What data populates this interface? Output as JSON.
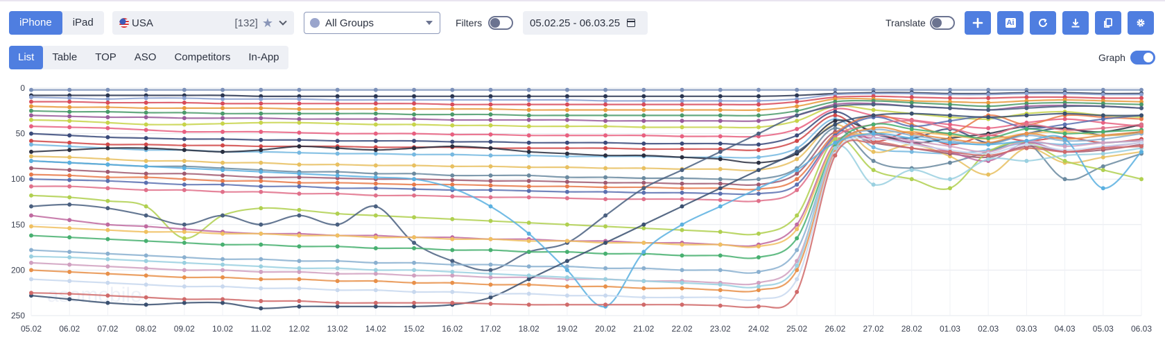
{
  "device_tabs": [
    {
      "label": "iPhone",
      "active": true
    },
    {
      "label": "iPad",
      "active": false
    }
  ],
  "country": {
    "name": "USA",
    "count": "[132]"
  },
  "group_select": {
    "value": "All Groups"
  },
  "filters": {
    "label": "Filters",
    "on": false
  },
  "date_range": "05.02.25 - 06.03.25",
  "translate": {
    "label": "Translate",
    "on": false
  },
  "toolbar": [
    {
      "name": "add-button",
      "icon": "plus-icon"
    },
    {
      "name": "ai-button",
      "icon": "ai-icon",
      "label": "Ai"
    },
    {
      "name": "refresh-button",
      "icon": "refresh-icon"
    },
    {
      "name": "download-button",
      "icon": "download-icon"
    },
    {
      "name": "copy-button",
      "icon": "copy-icon"
    },
    {
      "name": "settings-button",
      "icon": "gear-icon"
    }
  ],
  "view_tabs": [
    {
      "label": "List",
      "active": true
    },
    {
      "label": "Table",
      "active": false
    },
    {
      "label": "TOP",
      "active": false
    },
    {
      "label": "ASO",
      "active": false
    },
    {
      "label": "Competitors",
      "active": false
    },
    {
      "label": "In-App",
      "active": false
    }
  ],
  "graph_toggle": {
    "label": "Graph",
    "on": true
  },
  "watermark": "asomobile",
  "chart_data": {
    "type": "line",
    "y_inverted": true,
    "ylim": [
      0,
      250
    ],
    "y_ticks": [
      0,
      50,
      100,
      150,
      200,
      250
    ],
    "grid": true,
    "x": [
      "05.02",
      "06.02",
      "07.02",
      "08.02",
      "09.02",
      "10.02",
      "11.02",
      "12.02",
      "13.02",
      "14.02",
      "15.02",
      "16.02",
      "17.02",
      "18.02",
      "19.02",
      "20.02",
      "21.02",
      "22.02",
      "23.02",
      "24.02",
      "25.02",
      "26.02",
      "27.02",
      "28.02",
      "01.03",
      "02.03",
      "03.03",
      "04.03",
      "05.03",
      "06.03"
    ],
    "series": [
      {
        "color": "#7a8fb8",
        "values": [
          2,
          2,
          2,
          2,
          2,
          2,
          2,
          2,
          2,
          2,
          2,
          2,
          2,
          2,
          2,
          2,
          2,
          2,
          2,
          2,
          2,
          2,
          2,
          2,
          2,
          2,
          2,
          2,
          2,
          2
        ]
      },
      {
        "color": "#2a3550",
        "values": [
          8,
          8,
          8,
          8,
          8,
          8,
          9,
          9,
          9,
          9,
          9,
          9,
          9,
          9,
          9,
          9,
          9,
          9,
          9,
          9,
          8,
          6,
          5,
          5,
          6,
          6,
          5,
          5,
          6,
          6
        ]
      },
      {
        "color": "#8aa0d0",
        "values": [
          10,
          11,
          12,
          11,
          11,
          12,
          12,
          12,
          13,
          13,
          13,
          13,
          13,
          13,
          13,
          14,
          14,
          14,
          14,
          14,
          12,
          7,
          6,
          6,
          7,
          7,
          6,
          6,
          7,
          7
        ]
      },
      {
        "color": "#d84b5a",
        "values": [
          15,
          15,
          16,
          16,
          16,
          17,
          17,
          17,
          17,
          17,
          17,
          18,
          18,
          18,
          18,
          18,
          18,
          18,
          18,
          18,
          15,
          10,
          9,
          10,
          11,
          11,
          10,
          10,
          11,
          11
        ]
      },
      {
        "color": "#e89a3c",
        "values": [
          20,
          21,
          21,
          22,
          22,
          22,
          22,
          23,
          23,
          23,
          23,
          23,
          23,
          24,
          24,
          24,
          24,
          24,
          24,
          24,
          20,
          12,
          12,
          14,
          15,
          16,
          14,
          13,
          14,
          15
        ]
      },
      {
        "color": "#4a9a6a",
        "values": [
          25,
          26,
          26,
          27,
          27,
          28,
          28,
          28,
          28,
          28,
          29,
          29,
          29,
          30,
          30,
          30,
          30,
          30,
          30,
          30,
          25,
          15,
          14,
          16,
          18,
          20,
          17,
          16,
          17,
          18
        ]
      },
      {
        "color": "#9a5a9a",
        "values": [
          30,
          31,
          32,
          32,
          33,
          33,
          33,
          34,
          34,
          34,
          34,
          35,
          35,
          35,
          35,
          36,
          36,
          36,
          36,
          36,
          30,
          18,
          17,
          20,
          22,
          24,
          20,
          19,
          20,
          22
        ]
      },
      {
        "color": "#c7d44a",
        "values": [
          35,
          36,
          38,
          40,
          40,
          39,
          38,
          38,
          39,
          40,
          40,
          41,
          41,
          42,
          42,
          42,
          43,
          43,
          43,
          43,
          36,
          20,
          24,
          28,
          32,
          34,
          28,
          26,
          30,
          32
        ]
      },
      {
        "color": "#e86080",
        "values": [
          42,
          43,
          44,
          46,
          48,
          48,
          48,
          49,
          50,
          50,
          50,
          51,
          51,
          52,
          52,
          52,
          52,
          53,
          53,
          53,
          45,
          23,
          30,
          35,
          40,
          44,
          38,
          34,
          38,
          42
        ]
      },
      {
        "color": "#3a4a7a",
        "values": [
          50,
          52,
          54,
          55,
          56,
          56,
          57,
          57,
          58,
          58,
          58,
          59,
          59,
          60,
          60,
          60,
          61,
          61,
          61,
          62,
          52,
          26,
          50,
          55,
          45,
          60,
          50,
          44,
          52,
          48
        ]
      },
      {
        "color": "#d04848",
        "values": [
          58,
          60,
          62,
          62,
          63,
          63,
          64,
          64,
          64,
          65,
          65,
          65,
          66,
          66,
          66,
          66,
          67,
          67,
          67,
          68,
          58,
          30,
          58,
          48,
          62,
          52,
          58,
          54,
          60,
          56
        ]
      },
      {
        "color": "#76b8e0",
        "values": [
          62,
          64,
          66,
          68,
          68,
          70,
          70,
          71,
          72,
          72,
          73,
          73,
          74,
          74,
          75,
          75,
          75,
          76,
          76,
          76,
          66,
          34,
          65,
          70,
          72,
          68,
          60,
          62,
          60,
          58
        ]
      },
      {
        "color": "#2a2f40",
        "values": [
          70,
          68,
          66,
          66,
          68,
          70,
          68,
          64,
          66,
          68,
          66,
          64,
          66,
          70,
          72,
          74,
          74,
          76,
          78,
          82,
          72,
          36,
          48,
          60,
          55,
          50,
          42,
          45,
          48,
          40
        ]
      },
      {
        "color": "#e8c060",
        "values": [
          75,
          76,
          78,
          80,
          80,
          82,
          82,
          84,
          84,
          85,
          85,
          86,
          86,
          87,
          87,
          88,
          88,
          89,
          89,
          90,
          78,
          40,
          70,
          62,
          75,
          95,
          66,
          82,
          76,
          70
        ]
      },
      {
        "color": "#6a8aa0",
        "values": [
          80,
          82,
          84,
          86,
          86,
          88,
          90,
          92,
          92,
          94,
          94,
          96,
          96,
          96,
          98,
          98,
          99,
          99,
          100,
          100,
          88,
          44,
          80,
          88,
          82,
          70,
          60,
          100,
          86,
          72
        ]
      },
      {
        "color": "#a05a70",
        "values": [
          88,
          90,
          92,
          94,
          94,
          96,
          98,
          98,
          99,
          100,
          100,
          101,
          102,
          102,
          103,
          104,
          104,
          105,
          105,
          106,
          94,
          48,
          60,
          66,
          72,
          76,
          64,
          70,
          68,
          62
        ]
      },
      {
        "color": "#e87a4a",
        "values": [
          95,
          96,
          98,
          98,
          100,
          102,
          102,
          104,
          104,
          105,
          106,
          106,
          107,
          108,
          108,
          109,
          109,
          110,
          110,
          111,
          100,
          50,
          30,
          40,
          50,
          30,
          40,
          30,
          32,
          34
        ]
      },
      {
        "color": "#5a70b0",
        "values": [
          100,
          101,
          102,
          104,
          106,
          106,
          108,
          108,
          110,
          110,
          111,
          112,
          112,
          113,
          114,
          114,
          115,
          115,
          116,
          116,
          106,
          52,
          32,
          42,
          36,
          32,
          44,
          40,
          34,
          30
        ]
      },
      {
        "color": "#e0708a",
        "values": [
          108,
          108,
          110,
          112,
          112,
          114,
          114,
          116,
          116,
          118,
          118,
          119,
          120,
          120,
          121,
          122,
          122,
          122,
          123,
          124,
          112,
          54,
          40,
          36,
          44,
          52,
          40,
          46,
          44,
          40
        ]
      },
      {
        "color": "#b0d050",
        "values": [
          118,
          120,
          124,
          130,
          165,
          140,
          132,
          134,
          138,
          140,
          142,
          144,
          146,
          148,
          150,
          152,
          154,
          156,
          158,
          160,
          140,
          56,
          90,
          100,
          110,
          70,
          60,
          80,
          90,
          100
        ]
      },
      {
        "color": "#4a6080",
        "values": [
          130,
          128,
          132,
          140,
          150,
          140,
          150,
          140,
          150,
          130,
          170,
          190,
          200,
          180,
          170,
          140,
          110,
          90,
          70,
          50,
          30,
          20,
          18,
          20,
          22,
          24,
          22,
          20,
          20,
          22
        ]
      },
      {
        "color": "#c06aa0",
        "values": [
          140,
          145,
          150,
          152,
          155,
          158,
          160,
          160,
          162,
          162,
          164,
          164,
          166,
          166,
          168,
          168,
          170,
          170,
          172,
          172,
          150,
          60,
          55,
          60,
          70,
          80,
          60,
          70,
          65,
          60
        ]
      },
      {
        "color": "#f0c060",
        "values": [
          152,
          154,
          156,
          158,
          158,
          160,
          160,
          162,
          162,
          164,
          164,
          166,
          166,
          168,
          168,
          170,
          170,
          172,
          172,
          174,
          155,
          62,
          50,
          48,
          52,
          56,
          50,
          48,
          52,
          50
        ]
      },
      {
        "color": "#48b070",
        "values": [
          162,
          164,
          166,
          168,
          170,
          172,
          172,
          174,
          174,
          176,
          176,
          178,
          178,
          180,
          180,
          182,
          182,
          184,
          184,
          186,
          165,
          64,
          40,
          45,
          50,
          55,
          45,
          50,
          48,
          46
        ]
      },
      {
        "color": "#8ab0d0",
        "values": [
          178,
          180,
          182,
          184,
          186,
          188,
          188,
          190,
          190,
          192,
          192,
          194,
          194,
          196,
          196,
          198,
          198,
          200,
          200,
          202,
          178,
          66,
          46,
          52,
          58,
          62,
          52,
          58,
          56,
          50
        ]
      },
      {
        "color": "#d0a0c0",
        "values": [
          192,
          194,
          196,
          198,
          200,
          200,
          202,
          202,
          204,
          204,
          206,
          206,
          208,
          208,
          210,
          210,
          212,
          212,
          214,
          214,
          190,
          68,
          52,
          58,
          64,
          70,
          58,
          64,
          60,
          58
        ]
      },
      {
        "color": "#e8904a",
        "values": [
          200,
          202,
          204,
          206,
          208,
          208,
          210,
          210,
          212,
          212,
          214,
          214,
          216,
          216,
          218,
          218,
          220,
          220,
          222,
          222,
          200,
          70,
          44,
          50,
          56,
          60,
          50,
          56,
          52,
          48
        ]
      },
      {
        "color": "#5ab0e0",
        "values": [
          80,
          82,
          84,
          86,
          88,
          90,
          92,
          94,
          96,
          98,
          100,
          110,
          130,
          160,
          200,
          240,
          180,
          150,
          130,
          110,
          90,
          60,
          50,
          55,
          60,
          62,
          58,
          56,
          110,
          70
        ]
      },
      {
        "color": "#3a5070",
        "values": [
          228,
          232,
          236,
          238,
          236,
          236,
          242,
          240,
          240,
          240,
          240,
          238,
          230,
          210,
          190,
          170,
          150,
          130,
          110,
          90,
          70,
          40,
          30,
          28,
          30,
          32,
          30,
          28,
          30,
          30
        ]
      },
      {
        "color": "#c8d8ee",
        "values": [
          210,
          212,
          214,
          216,
          218,
          218,
          220,
          220,
          222,
          222,
          224,
          224,
          226,
          226,
          228,
          228,
          230,
          230,
          230,
          232,
          210,
          72,
          56,
          62,
          68,
          72,
          62,
          68,
          64,
          60
        ]
      },
      {
        "color": "#9ad0e0",
        "values": [
          185,
          186,
          188,
          190,
          192,
          194,
          196,
          198,
          198,
          200,
          200,
          202,
          204,
          206,
          208,
          210,
          212,
          214,
          216,
          218,
          195,
          66,
          106,
          90,
          100,
          78,
          80,
          74,
          72,
          66
        ]
      },
      {
        "color": "#d06a6a",
        "values": [
          225,
          226,
          228,
          230,
          232,
          232,
          234,
          234,
          236,
          236,
          236,
          236,
          237,
          238,
          238,
          238,
          238,
          238,
          239,
          240,
          224,
          74,
          60,
          66,
          70,
          74,
          66,
          70,
          66,
          64
        ]
      }
    ]
  }
}
